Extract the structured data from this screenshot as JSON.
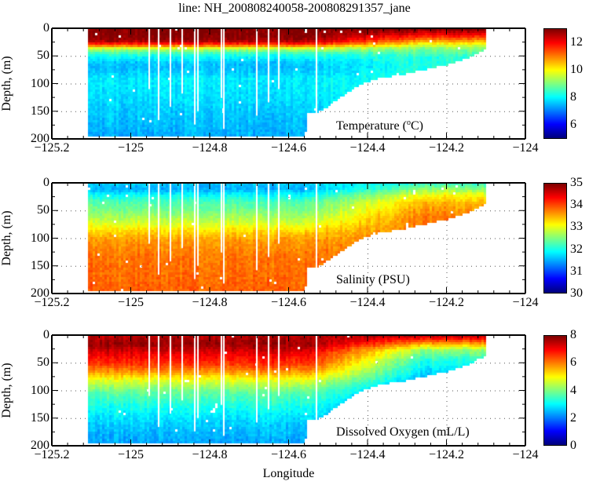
{
  "chart_data": [
    {
      "type": "heatmap",
      "id": "temperature",
      "title": "line: NH_200808240058-200808291357_jane",
      "annotation": "Temperature (°C)",
      "annotation_unit_prefix": "Temperature (",
      "annotation_unit_sup": "o",
      "annotation_unit_suffix": "C)",
      "xlabel": "",
      "ylabel": "Depth, (m)",
      "xlim": [
        -125.2,
        -124
      ],
      "ylim": [
        0,
        200
      ],
      "y_reversed": true,
      "xticks": [
        "-125.2",
        "-125",
        "-124.8",
        "-124.6",
        "-124.4",
        "-124.2",
        "-124"
      ],
      "yticks": [
        "0",
        "50",
        "100",
        "150",
        "200"
      ],
      "grid": "dotted",
      "colorbar": {
        "range": [
          5,
          13
        ],
        "ticks": [
          "6",
          "8",
          "10",
          "12"
        ],
        "colormap": "jet"
      },
      "vertical_profile": {
        "depth": [
          0,
          10,
          20,
          28,
          35,
          45,
          60,
          70,
          90,
          120,
          150,
          190
        ],
        "value": [
          13,
          13,
          12.8,
          11.5,
          9.5,
          8.3,
          7.6,
          7.5,
          7.9,
          7.8,
          7.6,
          7.4
        ]
      },
      "nearshore_profile": {
        "depth": [
          0,
          15,
          25,
          35,
          50
        ],
        "value": [
          13,
          11.5,
          10.2,
          9,
          8.3
        ]
      }
    },
    {
      "type": "heatmap",
      "id": "salinity",
      "annotation": "Salinity (PSU)",
      "xlabel": "",
      "ylabel": "Depth, (m)",
      "xlim": [
        -125.2,
        -124
      ],
      "ylim": [
        0,
        200
      ],
      "y_reversed": true,
      "xticks": [
        "-125.2",
        "-125",
        "-124.8",
        "-124.6",
        "-124.4",
        "-124.2",
        "-124"
      ],
      "yticks": [
        "0",
        "50",
        "100",
        "150",
        "200"
      ],
      "grid": "dotted",
      "colorbar": {
        "range": [
          30,
          35
        ],
        "ticks": [
          "30",
          "31",
          "32",
          "33",
          "34",
          "35"
        ],
        "colormap": "jet"
      },
      "vertical_profile": {
        "depth": [
          0,
          10,
          20,
          35,
          50,
          70,
          85,
          100,
          130,
          190
        ],
        "value": [
          31.6,
          31.5,
          31.9,
          32.3,
          32.5,
          32.9,
          33.3,
          33.6,
          33.8,
          33.9
        ]
      },
      "nearshore_profile": {
        "depth": [
          0,
          10,
          20,
          35,
          60
        ],
        "value": [
          32.2,
          32.6,
          33.1,
          33.5,
          33.8
        ]
      }
    },
    {
      "type": "heatmap",
      "id": "oxygen",
      "annotation": "Dissolved Oxygen (mL/L)",
      "xlabel": "Longitude",
      "ylabel": "Depth, (m)",
      "xlim": [
        -125.2,
        -124
      ],
      "ylim": [
        0,
        200
      ],
      "y_reversed": true,
      "xticks": [
        "-125.2",
        "-125",
        "-124.8",
        "-124.6",
        "-124.4",
        "-124.2",
        "-124"
      ],
      "yticks": [
        "0",
        "50",
        "100",
        "150",
        "200"
      ],
      "grid": "dotted",
      "colorbar": {
        "range": [
          0,
          8
        ],
        "ticks": [
          "0",
          "2",
          "4",
          "6",
          "8"
        ],
        "colormap": "jet"
      },
      "vertical_profile": {
        "depth": [
          0,
          15,
          30,
          50,
          65,
          80,
          100,
          130,
          160,
          190
        ],
        "value": [
          7.6,
          7.8,
          7.2,
          6.6,
          5.8,
          4.8,
          3.8,
          3.1,
          2.6,
          2.3
        ]
      },
      "nearshore_profile": {
        "depth": [
          0,
          10,
          25,
          45,
          70,
          100,
          150
        ],
        "value": [
          7.4,
          6.2,
          4.2,
          3.2,
          2.6,
          1.8,
          1.5
        ]
      }
    }
  ],
  "section": {
    "lon_start": -125.108,
    "lon_end": -124.1,
    "bottom_depth": {
      "lon": [
        -125.108,
        -124.56,
        -124.555,
        -124.53,
        -124.5,
        -124.46,
        -124.42,
        -124.38,
        -124.3,
        -124.25,
        -124.2,
        -124.15,
        -124.11,
        -124.1
      ],
      "depth": [
        192,
        192,
        150,
        152,
        138,
        118,
        100,
        90,
        80,
        72,
        64,
        52,
        40,
        28
      ]
    },
    "gap_longitudes": [
      -124.956,
      -124.932,
      -124.902,
      -124.872,
      -124.84,
      -124.832,
      -124.772,
      -124.766,
      -124.682,
      -124.652,
      -124.626,
      -124.532
    ]
  },
  "labels": {
    "title": "line: NH_200808240058-200808291357_jane",
    "xlabel": "Longitude",
    "ylabel": "Depth, (m)"
  }
}
